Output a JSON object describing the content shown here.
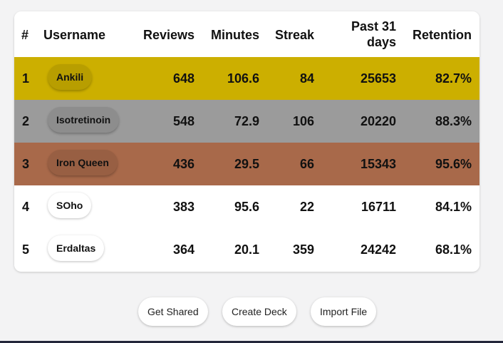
{
  "table": {
    "headers": {
      "rank": "#",
      "username": "Username",
      "reviews": "Reviews",
      "minutes": "Minutes",
      "streak": "Streak",
      "past_line1": "Past 31",
      "past_line2": "days",
      "retention": "Retention"
    },
    "rows": [
      {
        "rank": "1",
        "username": "Ankili",
        "reviews": "648",
        "minutes": "106.6",
        "streak": "84",
        "past31": "25653",
        "retention": "82.7%",
        "row_color": "#ccaf00",
        "badge_color": "#b89e00"
      },
      {
        "rank": "2",
        "username": "Isotretinoin",
        "reviews": "548",
        "minutes": "72.9",
        "streak": "106",
        "past31": "20220",
        "retention": "88.3%",
        "row_color": "#9b9b9b",
        "badge_color": "#8d8d8d"
      },
      {
        "rank": "3",
        "username": "Iron Queen",
        "reviews": "436",
        "minutes": "29.5",
        "streak": "66",
        "past31": "15343",
        "retention": "95.6%",
        "row_color": "#a8694a",
        "badge_color": "#985f43"
      },
      {
        "rank": "4",
        "username": "SOho",
        "reviews": "383",
        "minutes": "95.6",
        "streak": "22",
        "past31": "16711",
        "retention": "84.1%",
        "row_color": "#ffffff",
        "badge_color": "#ffffff"
      },
      {
        "rank": "5",
        "username": "Erdaltas",
        "reviews": "364",
        "minutes": "20.1",
        "streak": "359",
        "past31": "24242",
        "retention": "68.1%",
        "row_color": "#ffffff",
        "badge_color": "#ffffff"
      }
    ]
  },
  "footer": {
    "get_shared": "Get Shared",
    "create_deck": "Create Deck",
    "import_file": "Import File"
  }
}
